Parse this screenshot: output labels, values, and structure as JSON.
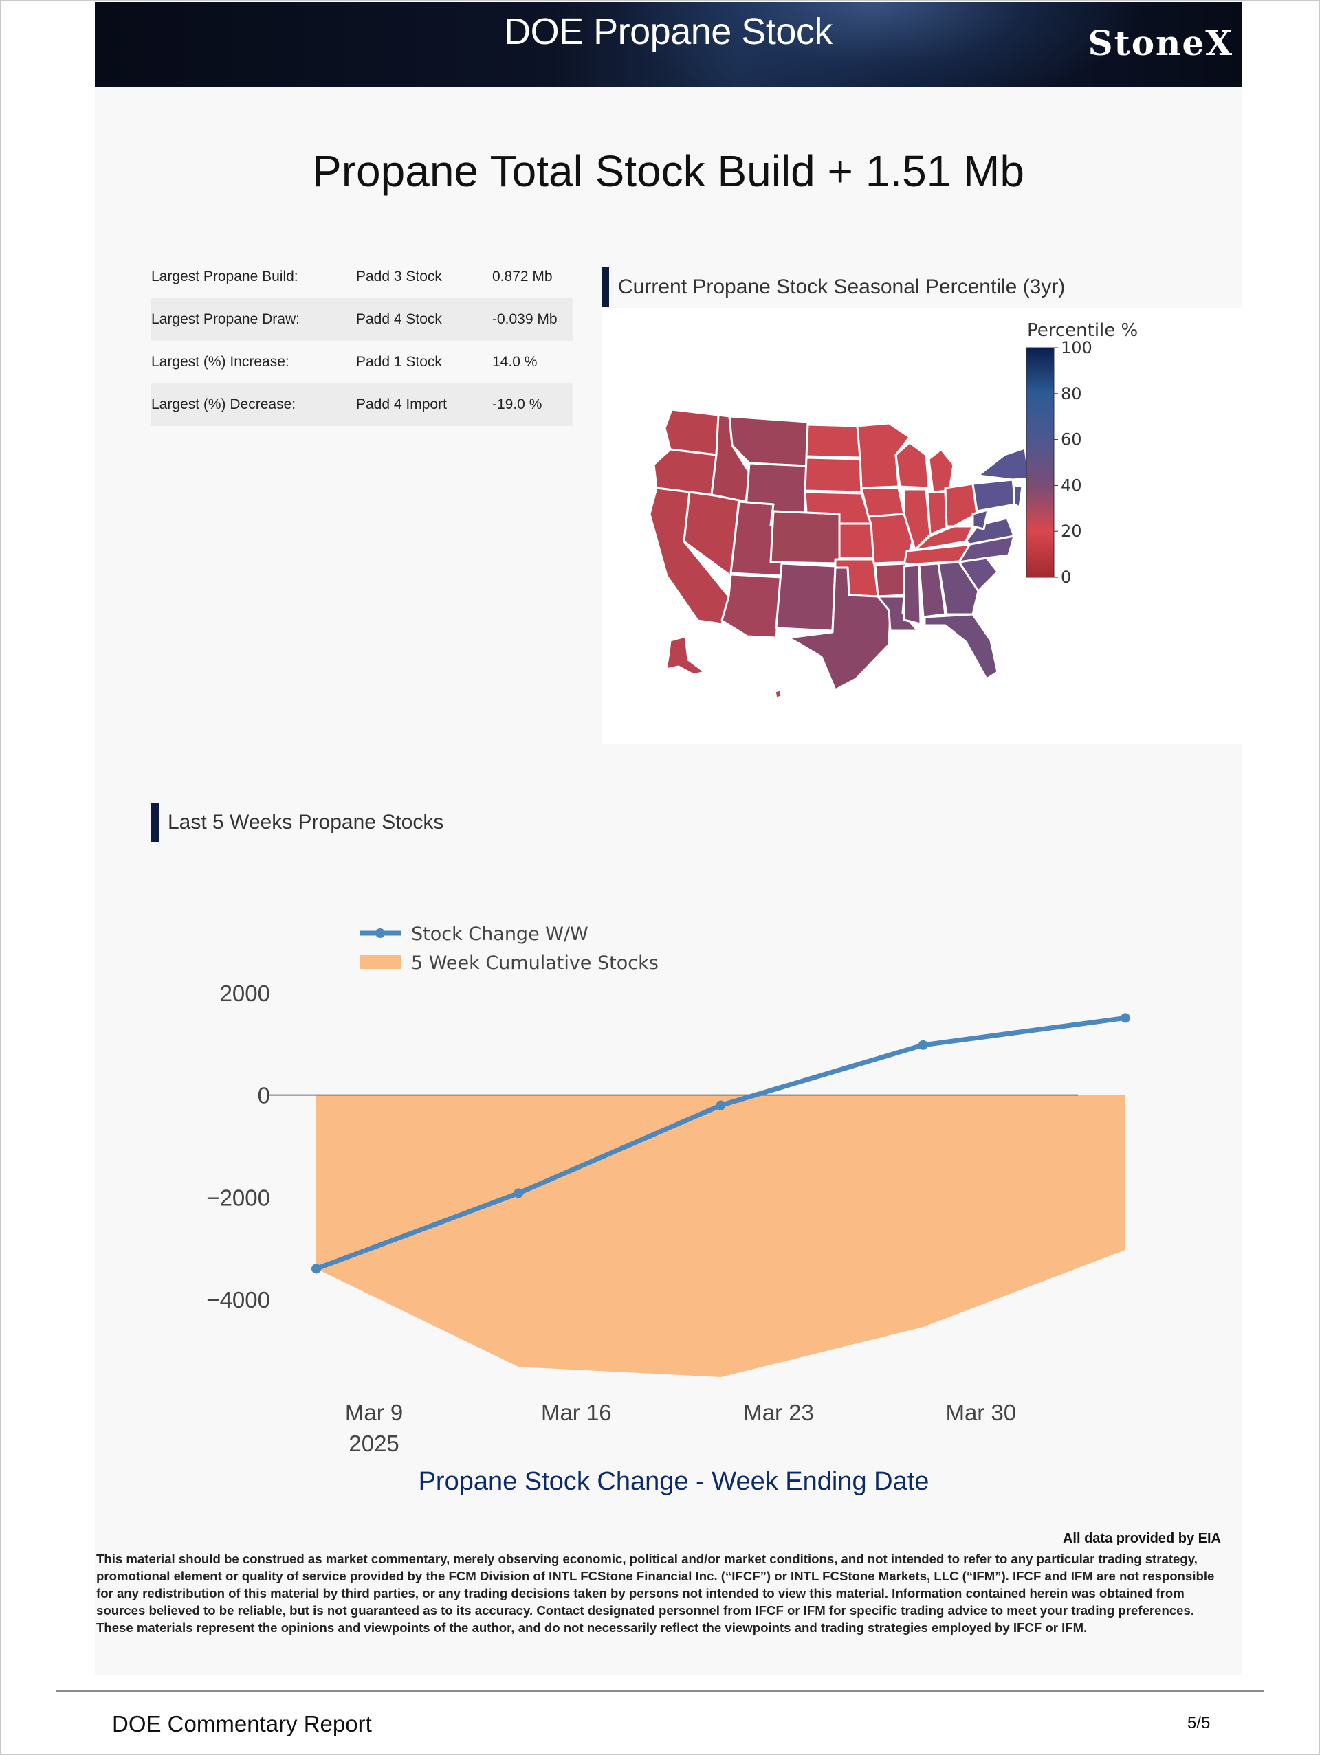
{
  "header": {
    "title": "DOE Propane Stock",
    "logo_text": "StoneX"
  },
  "main_title": "Propane Total Stock Build + 1.51 Mb",
  "summary_table": [
    {
      "label": "Largest Propane Build:",
      "item": "Padd 3 Stock",
      "value": "0.872 Mb"
    },
    {
      "label": "Largest Propane Draw:",
      "item": "Padd 4 Stock",
      "value": "-0.039 Mb"
    },
    {
      "label": "Largest (%) Increase:",
      "item": "Padd 1 Stock",
      "value": "14.0 %"
    },
    {
      "label": "Largest (%) Decrease:",
      "item": "Padd 4 Import",
      "value": "-19.0 %"
    }
  ],
  "map_section": {
    "title": "Current Propane Stock Seasonal Percentile (3yr)",
    "colorbar": {
      "title": "Percentile %",
      "ticks": [
        "100",
        "80",
        "60",
        "40",
        "20",
        "0"
      ],
      "colors": [
        "#0b1f4f",
        "#2d5a93",
        "#4d5891",
        "#7a4d75",
        "#d9474d",
        "#a02b31"
      ]
    }
  },
  "chart_section": {
    "title": "Last 5 Weeks Propane Stocks"
  },
  "chart_data": {
    "type": "line",
    "x": [
      "2025-03-07",
      "2025-03-14",
      "2025-03-21",
      "2025-03-28",
      "2025-04-04"
    ],
    "series": [
      {
        "name": "Stock Change W/W",
        "type": "line",
        "color": "#4a88bf",
        "values": [
          -3400,
          -1920,
          -200,
          980,
          1510
        ]
      },
      {
        "name": "5 Week Cumulative Stocks",
        "type": "area",
        "color": "#fbbb84",
        "values": [
          -3400,
          -5320,
          -5520,
          -4540,
          -3030
        ]
      }
    ],
    "xlabel": "Propane Stock Change - Week Ending Date",
    "ylabel": "",
    "xticks": [
      {
        "date": "2025-03-09",
        "label": "Mar 9",
        "sub": "2025"
      },
      {
        "date": "2025-03-16",
        "label": "Mar 16",
        "sub": ""
      },
      {
        "date": "2025-03-23",
        "label": "Mar 23",
        "sub": ""
      },
      {
        "date": "2025-03-30",
        "label": "Mar 30",
        "sub": ""
      }
    ],
    "yticks": [
      "2000",
      "0",
      "−2000",
      "−4000"
    ],
    "ylim": [
      -5900,
      2400
    ],
    "legend": "top-left",
    "grid": false
  },
  "source_note": "All data provided by EIA",
  "disclaimer": [
    "This material should be construed as market commentary, merely observing economic, political and/or market conditions, and not intended to refer to any particular trading strategy,",
    "promotional element or quality of service provided by the FCM Division of INTL FCStone Financial Inc. (“IFCF”) or INTL FCStone Markets, LLC (“IFM”). IFCF and IFM are not responsible",
    "for any redistribution of this material by third parties, or any trading decisions taken by persons not intended to view this material. Information contained herein was obtained from",
    "sources believed to be reliable, but is not guaranteed as to its accuracy. Contact designated personnel from IFCF or IFM for specific trading advice to meet your trading preferences.",
    "These materials represent the opinions and viewpoints of the author, and do not necessarily reflect the viewpoints and trading strategies employed by IFCF or IFM."
  ],
  "footer": {
    "left": "DOE Commentary Report",
    "right": "5/5"
  }
}
